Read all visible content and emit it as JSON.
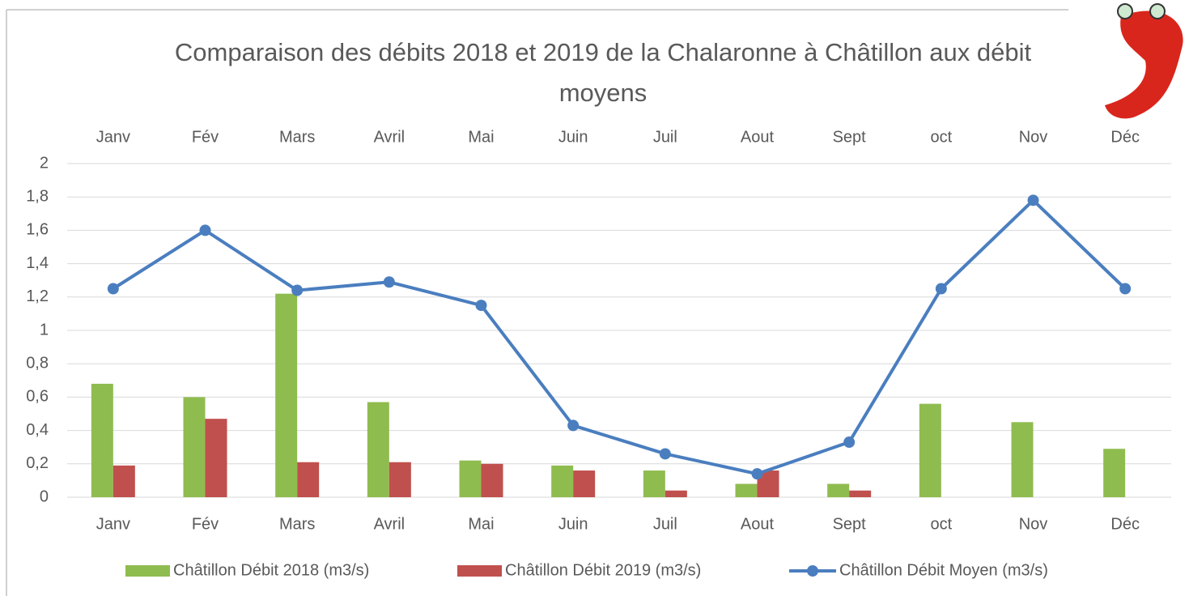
{
  "chart_data": {
    "type": "bar-line",
    "title": "Comparaison des débits 2018 et 2019 de la Chalaronne à Châtillon aux débit moyens",
    "categories": [
      "Janv",
      "Fév",
      "Mars",
      "Avril",
      "Mai",
      "Juin",
      "Juil",
      "Aout",
      "Sept",
      "oct",
      "Nov",
      "Déc"
    ],
    "series": [
      {
        "name": "Châtillon Débit 2018 (m3/s)",
        "type": "bar",
        "color": "#8fbc4f",
        "values": [
          0.68,
          0.6,
          1.22,
          0.57,
          0.22,
          0.19,
          0.16,
          0.08,
          0.08,
          0.56,
          0.45,
          0.29
        ]
      },
      {
        "name": "Châtillon Débit 2019 (m3/s)",
        "type": "bar",
        "color": "#c0504d",
        "values": [
          0.19,
          0.47,
          0.21,
          0.21,
          0.2,
          0.16,
          0.04,
          0.16,
          0.04,
          null,
          null,
          null
        ]
      },
      {
        "name": "Châtillon Débit Moyen (m3/s)",
        "type": "line",
        "color": "#4a7ebf",
        "values": [
          1.25,
          1.6,
          1.24,
          1.29,
          1.15,
          0.43,
          0.26,
          0.14,
          0.33,
          1.25,
          1.78,
          1.25
        ]
      }
    ],
    "ylim": [
      0,
      2
    ],
    "yticks": [
      0,
      {
        "value": 0.2,
        "label": "0,2"
      },
      {
        "value": 0.4,
        "label": "0,4"
      },
      {
        "value": 0.6,
        "label": "0,6"
      },
      {
        "value": 0.8,
        "label": "0,8"
      },
      1,
      {
        "value": 1.2,
        "label": "1,2"
      },
      {
        "value": 1.4,
        "label": "1,4"
      },
      {
        "value": 1.6,
        "label": "1,6"
      },
      {
        "value": 1.8,
        "label": "1,8"
      },
      2
    ],
    "grid": true
  }
}
